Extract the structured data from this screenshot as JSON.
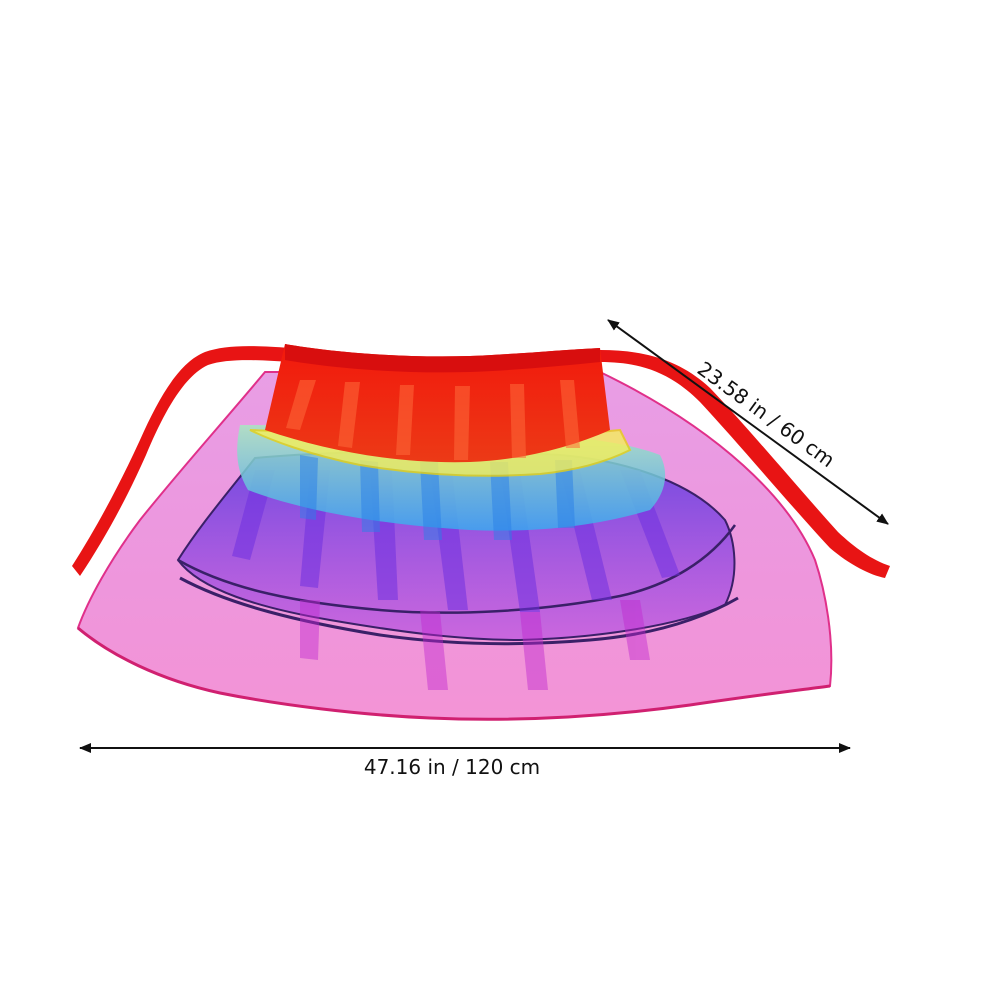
{
  "dimensions": {
    "width_label": "47.16 in / 120 cm",
    "height_label": "23.58 in / 60 cm"
  },
  "product": {
    "name": "rainbow tulle tutu skirt",
    "colors": {
      "ribbon": "#e81414",
      "waistband": "#f0200e",
      "yellow_layer": "#f5f05a",
      "blue_layer": "#3ab0ee",
      "purple_layer": "#6a3ce8",
      "pink_layer": "#e35fd6",
      "hem_edge": "#4a2a7a"
    }
  }
}
